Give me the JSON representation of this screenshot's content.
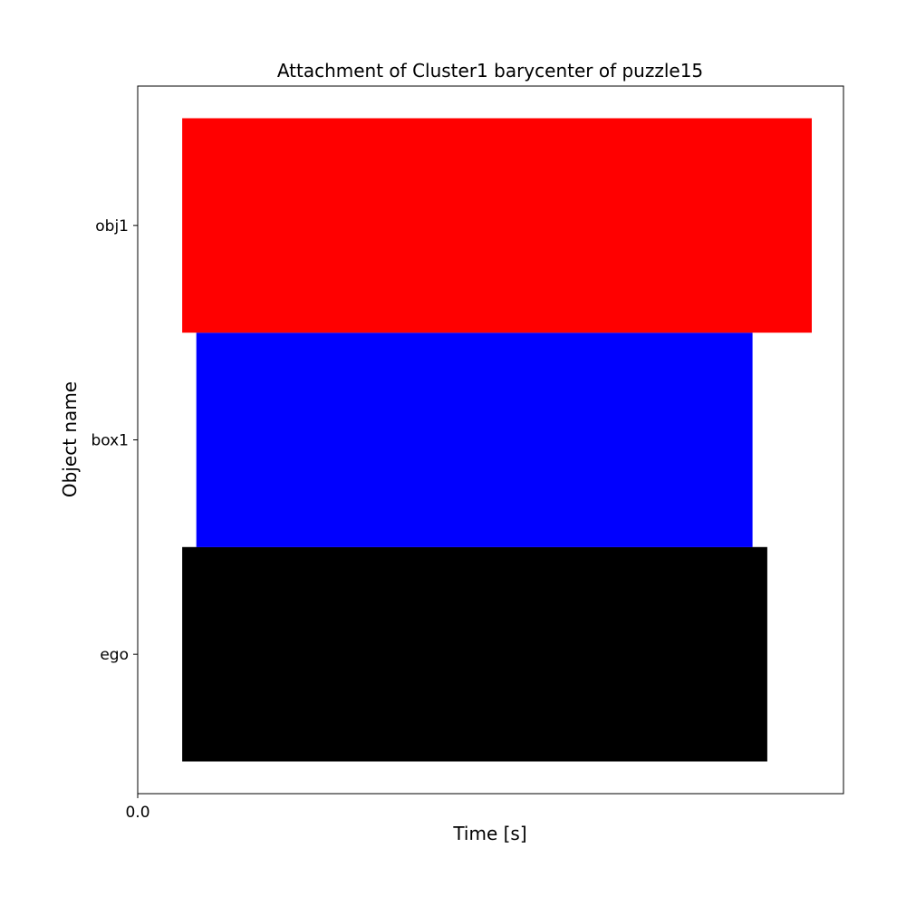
{
  "chart_data": {
    "type": "bar",
    "orientation": "horizontal",
    "title": "Attachment of Cluster1 barycenter of puzzle15",
    "xlabel": "Time [s]",
    "ylabel": "Object name",
    "categories": [
      "ego",
      "box1",
      "obj1"
    ],
    "x_tick_labels": [
      "0.0"
    ],
    "x_ticks": [
      0.0
    ],
    "xlim": [
      0.0,
      1.0
    ],
    "ylim": [
      -0.65,
      2.65
    ],
    "grid": false,
    "bars": [
      {
        "category": "ego",
        "start": 0.063,
        "end": 0.892,
        "color": "#000000"
      },
      {
        "category": "box1",
        "start": 0.083,
        "end": 0.871,
        "color": "#0000ff"
      },
      {
        "category": "obj1",
        "start": 0.063,
        "end": 0.955,
        "color": "#ff0000"
      }
    ]
  }
}
